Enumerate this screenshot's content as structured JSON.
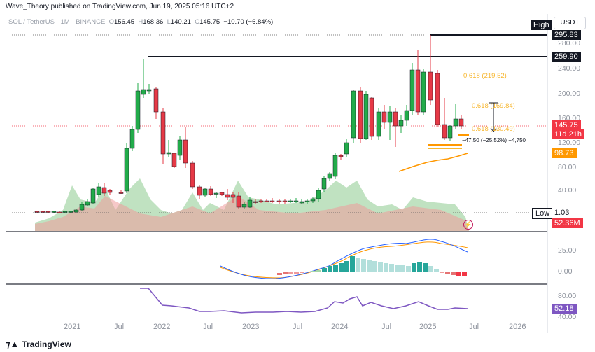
{
  "header": {
    "published": "Wave_Theory published on TradingView.com, Jun 19, 2025 05:16 UTC+2"
  },
  "legend": {
    "symbol": "SOL / TetherUS · 1M · BINANCE",
    "o_label": "O",
    "o": "156.45",
    "h_label": "H",
    "h": "168.36",
    "l_label": "L",
    "l": "140.21",
    "c_label": "C",
    "c": "145.75",
    "change": "−10.70 (−6.84%)"
  },
  "currency": "USDT",
  "price_axis": [
    "280.00",
    "240.00",
    "200.00",
    "160.00",
    "120.00",
    "80.00",
    "40.00"
  ],
  "time_axis": [
    "2021",
    "Jul",
    "2022",
    "Jul",
    "2023",
    "Jul",
    "2024",
    "Jul",
    "2025",
    "Jul",
    "2026"
  ],
  "tags": {
    "high_label": "High",
    "high_value": "295.83",
    "level_value": "259.90",
    "last_price": "145.75",
    "countdown": "11d 21h",
    "ma_value": "98.73",
    "low_label": "Low",
    "low_value": "1.03",
    "volume_value": "52.36M"
  },
  "fib": {
    "f1": "0.618 (219.52)",
    "f2": "0.618 (169.84)",
    "f3": "0.618 (130.49)"
  },
  "measure": {
    "text": "−47.50 (−25.52%) −4,750"
  },
  "macd_axis": [
    "25.00",
    "0.00"
  ],
  "rsi_axis": [
    "80.00",
    "40.00"
  ],
  "rsi_value": "52.18",
  "footer": {
    "brand": "TradingView"
  },
  "colors": {
    "up": "#22ab4a",
    "down": "#e63946",
    "accent": "#2962ff",
    "rsi": "#7e57c2",
    "fib": "#f7b731"
  }
}
